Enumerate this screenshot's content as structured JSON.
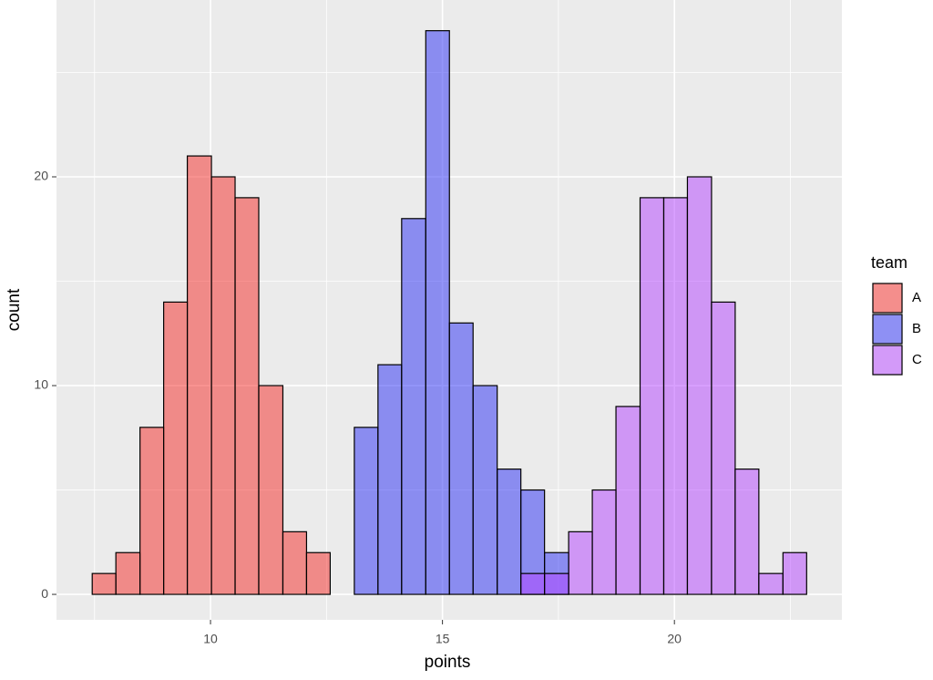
{
  "chart_data": {
    "type": "histogram",
    "x_label": "points",
    "y_label": "count",
    "bins": [
      7.45,
      7.96,
      8.48,
      8.99,
      9.5,
      10.02,
      10.53,
      11.04,
      11.56,
      12.07,
      12.58,
      13.1,
      13.61,
      14.12,
      14.64,
      15.15,
      15.66,
      16.18,
      16.69,
      17.2,
      17.72,
      18.23,
      18.74,
      19.26,
      19.77,
      20.28,
      20.8,
      21.31,
      21.82,
      22.34,
      22.85
    ],
    "series": [
      {
        "name": "A",
        "color": "#f52925",
        "values": [
          1,
          2,
          8,
          14,
          21,
          20,
          19,
          10,
          3,
          2,
          0,
          0,
          0,
          0,
          0,
          0,
          0,
          0,
          0,
          0,
          0,
          0,
          0,
          0,
          0,
          0,
          0,
          0,
          0,
          0
        ]
      },
      {
        "name": "B",
        "color": "#292df5",
        "values": [
          0,
          0,
          0,
          0,
          0,
          0,
          0,
          0,
          0,
          0,
          0,
          8,
          11,
          18,
          27,
          13,
          10,
          6,
          5,
          2,
          0,
          0,
          0,
          0,
          0,
          0,
          0,
          0,
          0,
          0
        ]
      },
      {
        "name": "C",
        "color": "#b341ff",
        "values": [
          0,
          0,
          0,
          0,
          0,
          0,
          0,
          0,
          0,
          0,
          0,
          0,
          0,
          0,
          0,
          0,
          0,
          0,
          1,
          1,
          3,
          5,
          9,
          19,
          19,
          20,
          14,
          6,
          1,
          2
        ]
      }
    ],
    "opacity": 0.5,
    "legend_title": "team",
    "xlim": [
      6.68,
      23.61
    ],
    "xticks": [
      10,
      15,
      20
    ],
    "ylim": [
      -1.22,
      28.47
    ],
    "yticks": [
      0,
      10,
      20
    ],
    "grid": true
  }
}
